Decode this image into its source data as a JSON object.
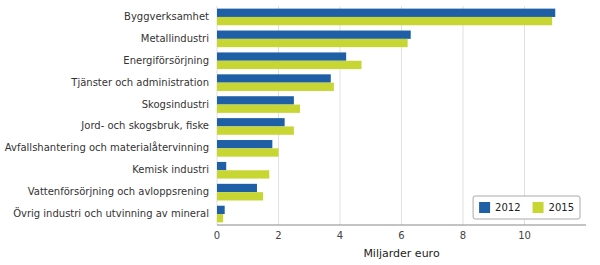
{
  "chart_data": {
    "type": "bar",
    "orientation": "horizontal",
    "categories": [
      "Byggverksamhet",
      "Metallindustri",
      "Energiförsörjning",
      "Tjänster och administration",
      "Skogsindustri",
      "Jord- och skogsbruk, fiske",
      "Avfallshantering och materialåtervinning",
      "Kemisk industri",
      "Vattenförsörjning och avloppsrening",
      "Övrig industri och utvinning av mineral"
    ],
    "series": [
      {
        "name": "2012",
        "color": "#1f5fa6",
        "values": [
          11.0,
          6.3,
          4.2,
          3.7,
          2.5,
          2.2,
          1.8,
          0.3,
          1.3,
          0.25
        ]
      },
      {
        "name": "2015",
        "color": "#c8d633",
        "values": [
          10.9,
          6.2,
          4.7,
          3.8,
          2.7,
          2.5,
          2.0,
          1.7,
          1.5,
          0.2
        ]
      }
    ],
    "xlabel": "Miljarder euro",
    "xlim": [
      0,
      12
    ],
    "xticks": [
      0,
      2,
      4,
      6,
      8,
      10
    ],
    "grid": true,
    "legend": "lower right"
  }
}
